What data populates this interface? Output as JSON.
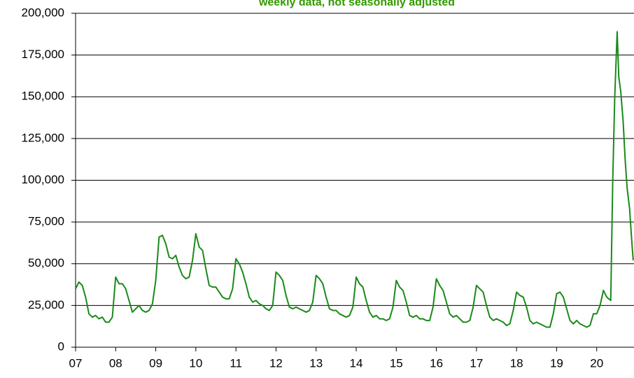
{
  "chart_data": {
    "type": "line",
    "subtitle": "weekly data, not seasonally adjusted",
    "xlim": [
      2007,
      2020.93
    ],
    "xticks": [
      {
        "value": 2007,
        "label": "07"
      },
      {
        "value": 2008,
        "label": "08"
      },
      {
        "value": 2009,
        "label": "09"
      },
      {
        "value": 2010,
        "label": "10"
      },
      {
        "value": 2011,
        "label": "11"
      },
      {
        "value": 2012,
        "label": "12"
      },
      {
        "value": 2013,
        "label": "13"
      },
      {
        "value": 2014,
        "label": "14"
      },
      {
        "value": 2015,
        "label": "15"
      },
      {
        "value": 2016,
        "label": "16"
      },
      {
        "value": 2017,
        "label": "17"
      },
      {
        "value": 2018,
        "label": "18"
      },
      {
        "value": 2019,
        "label": "19"
      },
      {
        "value": 2020,
        "label": "20"
      }
    ],
    "ylim": [
      0,
      200000
    ],
    "yticks": [
      0,
      {
        "value": 25000,
        "label": "25,000"
      },
      {
        "value": 50000,
        "label": "50,000"
      },
      {
        "value": 75000,
        "label": "75,000"
      },
      {
        "value": 100000,
        "label": "100,000"
      },
      {
        "value": 125000,
        "label": "125,000"
      },
      {
        "value": 150000,
        "label": "150,000"
      },
      {
        "value": 175000,
        "label": "175,000"
      },
      {
        "value": 200000,
        "label": "200,000"
      }
    ],
    "grid": true,
    "x": [
      2007,
      2007.083,
      2007.167,
      2007.25,
      2007.333,
      2007.417,
      2007.5,
      2007.583,
      2007.667,
      2007.75,
      2007.833,
      2007.917,
      2008,
      2008.083,
      2008.167,
      2008.25,
      2008.333,
      2008.417,
      2008.5,
      2008.583,
      2008.667,
      2008.75,
      2008.833,
      2008.917,
      2009,
      2009.083,
      2009.167,
      2009.25,
      2009.333,
      2009.417,
      2009.5,
      2009.583,
      2009.667,
      2009.75,
      2009.833,
      2009.917,
      2010,
      2010.083,
      2010.167,
      2010.25,
      2010.333,
      2010.417,
      2010.5,
      2010.583,
      2010.667,
      2010.75,
      2010.833,
      2010.917,
      2011,
      2011.083,
      2011.167,
      2011.25,
      2011.333,
      2011.417,
      2011.5,
      2011.583,
      2011.667,
      2011.75,
      2011.833,
      2011.917,
      2012,
      2012.083,
      2012.167,
      2012.25,
      2012.333,
      2012.417,
      2012.5,
      2012.583,
      2012.667,
      2012.75,
      2012.833,
      2012.917,
      2013,
      2013.083,
      2013.167,
      2013.25,
      2013.333,
      2013.417,
      2013.5,
      2013.583,
      2013.667,
      2013.75,
      2013.833,
      2013.917,
      2014,
      2014.083,
      2014.167,
      2014.25,
      2014.333,
      2014.417,
      2014.5,
      2014.583,
      2014.667,
      2014.75,
      2014.833,
      2014.917,
      2015,
      2015.083,
      2015.167,
      2015.25,
      2015.333,
      2015.417,
      2015.5,
      2015.583,
      2015.667,
      2015.75,
      2015.833,
      2015.917,
      2016,
      2016.083,
      2016.167,
      2016.25,
      2016.333,
      2016.417,
      2016.5,
      2016.583,
      2016.667,
      2016.75,
      2016.833,
      2016.917,
      2017,
      2017.083,
      2017.167,
      2017.25,
      2017.333,
      2017.417,
      2017.5,
      2017.583,
      2017.667,
      2017.75,
      2017.833,
      2017.917,
      2018,
      2018.083,
      2018.167,
      2018.25,
      2018.333,
      2018.417,
      2018.5,
      2018.583,
      2018.667,
      2018.75,
      2018.833,
      2018.917,
      2019,
      2019.083,
      2019.167,
      2019.25,
      2019.333,
      2019.417,
      2019.5,
      2019.583,
      2019.667,
      2019.75,
      2019.833,
      2019.917,
      2020,
      2020.083,
      2020.167,
      2020.25,
      2020.35,
      2020.4,
      2020.45,
      2020.51,
      2020.55,
      2020.6,
      2020.66,
      2020.71,
      2020.76,
      2020.82,
      2020.87,
      2020.91
    ],
    "series": [
      {
        "color": "#1a8a1a",
        "values": [
          35000,
          39000,
          37000,
          30000,
          20000,
          18000,
          19000,
          17000,
          18000,
          15000,
          15000,
          18000,
          42000,
          38000,
          38000,
          35000,
          28000,
          21000,
          23000,
          25000,
          22000,
          21000,
          22000,
          26000,
          40000,
          66000,
          67000,
          62000,
          54000,
          53000,
          55000,
          48000,
          43000,
          41000,
          42000,
          52000,
          68000,
          60000,
          58000,
          47000,
          37000,
          36000,
          36000,
          33000,
          30000,
          29000,
          29000,
          35000,
          53000,
          50000,
          45000,
          38000,
          30000,
          27000,
          28000,
          26000,
          25000,
          23000,
          22000,
          25000,
          45000,
          43000,
          40000,
          31000,
          24000,
          23000,
          24000,
          23000,
          22000,
          21000,
          22000,
          27000,
          43000,
          41000,
          38000,
          30000,
          23000,
          22000,
          22000,
          20000,
          19000,
          18000,
          19000,
          24000,
          42000,
          38000,
          36000,
          28000,
          21000,
          18000,
          19000,
          17000,
          17000,
          16000,
          17000,
          24000,
          40000,
          36000,
          34000,
          27000,
          19000,
          18000,
          19000,
          17000,
          17000,
          16000,
          16000,
          24000,
          41000,
          37000,
          34000,
          27000,
          20000,
          18000,
          19000,
          17000,
          15000,
          15000,
          16000,
          24000,
          37000,
          35000,
          33000,
          25000,
          18000,
          16000,
          17000,
          16000,
          15000,
          13000,
          14000,
          22000,
          33000,
          31000,
          30000,
          24000,
          16000,
          14000,
          15000,
          14000,
          13000,
          12000,
          12000,
          20000,
          32000,
          33000,
          30000,
          23000,
          16000,
          14000,
          16000,
          14000,
          13000,
          12000,
          13000,
          20000,
          20000,
          25000,
          34000,
          30000,
          28000,
          100000,
          150000,
          189000,
          162000,
          153000,
          135000,
          112000,
          95000,
          83000,
          65000,
          52000
        ]
      }
    ]
  }
}
